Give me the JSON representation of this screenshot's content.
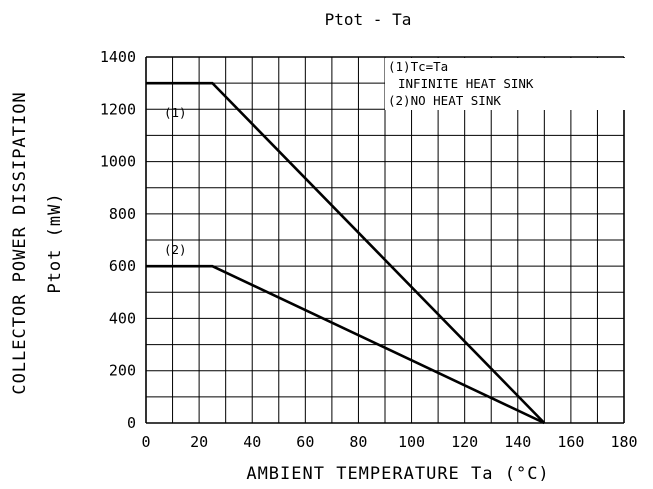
{
  "chart_data": {
    "type": "line",
    "title": "Ptot - Ta",
    "xlabel": "AMBIENT TEMPERATURE Ta (°C)",
    "ylabel_line1": "COLLECTOR POWER DISSIPATION",
    "ylabel_line2": "Ptot (mW)",
    "xlim": [
      0,
      180
    ],
    "ylim": [
      0,
      1400
    ],
    "x_ticks": [
      0,
      20,
      40,
      60,
      80,
      100,
      120,
      140,
      160,
      180
    ],
    "y_ticks": [
      0,
      200,
      400,
      600,
      800,
      1000,
      1200,
      1400
    ],
    "grid": true,
    "legend": {
      "placement": "top-right",
      "lines": [
        "(1)Tc=Ta",
        "INFINITE HEAT SINK",
        "(2)NO HEAT SINK"
      ]
    },
    "series": [
      {
        "name": "(1)",
        "x": [
          0,
          25,
          150
        ],
        "y": [
          1300,
          1300,
          0
        ]
      },
      {
        "name": "(2)",
        "x": [
          0,
          25,
          150
        ],
        "y": [
          600,
          600,
          0
        ]
      }
    ]
  }
}
